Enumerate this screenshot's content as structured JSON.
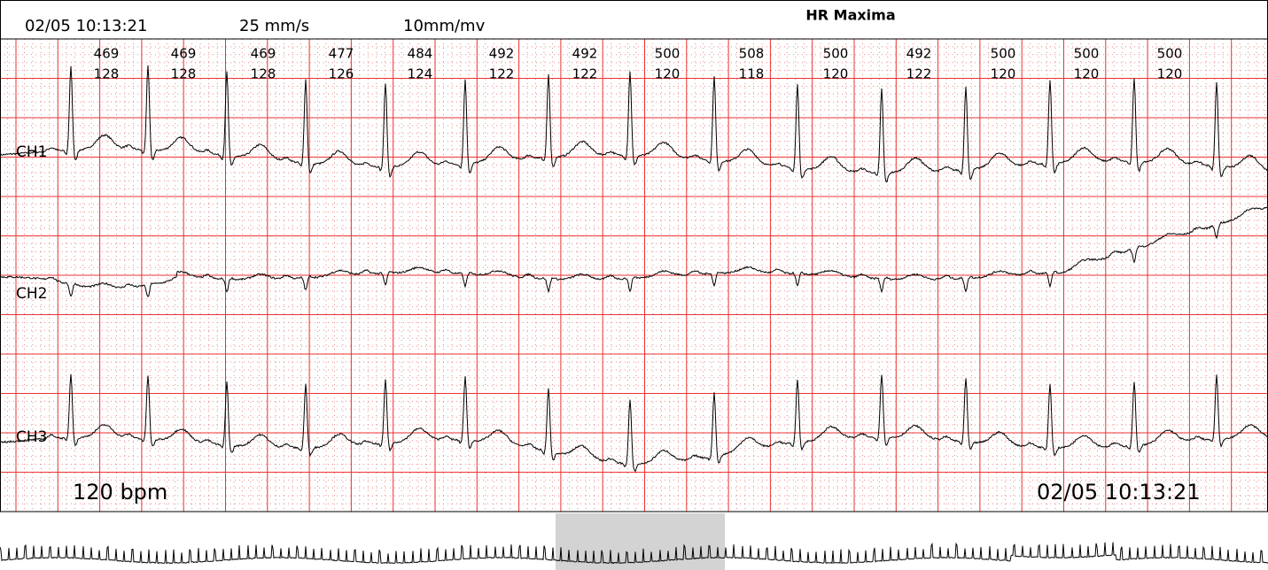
{
  "header": {
    "datetime": "02/05 10:13:21",
    "speed": "25 mm/s",
    "gain": "10mm/mv",
    "title": "HR Maxima"
  },
  "beats": [
    {
      "rr": "469",
      "hr": "128"
    },
    {
      "rr": "469",
      "hr": "128"
    },
    {
      "rr": "469",
      "hr": "128"
    },
    {
      "rr": "477",
      "hr": "126"
    },
    {
      "rr": "484",
      "hr": "124"
    },
    {
      "rr": "492",
      "hr": "122"
    },
    {
      "rr": "492",
      "hr": "122"
    },
    {
      "rr": "500",
      "hr": "120"
    },
    {
      "rr": "508",
      "hr": "118"
    },
    {
      "rr": "500",
      "hr": "120"
    },
    {
      "rr": "492",
      "hr": "122"
    },
    {
      "rr": "500",
      "hr": "120"
    },
    {
      "rr": "500",
      "hr": "120"
    },
    {
      "rr": "500",
      "hr": "120"
    }
  ],
  "channels": [
    "CH1",
    "CH2",
    "CH3"
  ],
  "footer": {
    "rate": "120 bpm",
    "datetime": "02/05 10:13:21"
  }
}
